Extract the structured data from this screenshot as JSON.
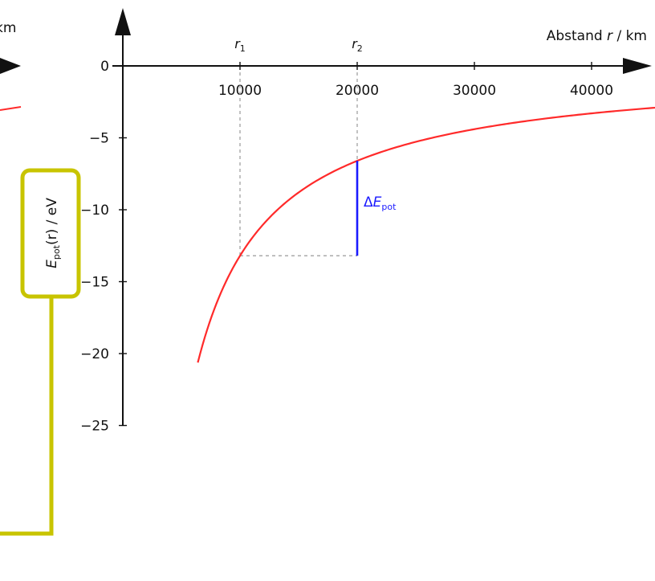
{
  "chart_data": {
    "type": "line",
    "xlabel": "Abstand r / km",
    "ylabel": "E_pot(r) / eV",
    "xlim": [
      0,
      46000
    ],
    "ylim": [
      -25,
      0
    ],
    "x_ticks": [
      10000,
      20000,
      30000,
      40000
    ],
    "y_ticks": [
      0,
      -5,
      -10,
      -15,
      -20,
      -25
    ],
    "x_tick_labels": [
      "10000",
      "20000",
      "30000",
      "40000"
    ],
    "y_tick_labels": [
      "0",
      "−5",
      "−10",
      "−15",
      "−20",
      "−25"
    ],
    "grid": false,
    "function": "E(r) = -132000 / r",
    "x_domain": [
      6400,
      46000
    ],
    "markers": [
      {
        "label": "r1",
        "x": 10000
      },
      {
        "label": "r2",
        "x": 20000
      }
    ],
    "annotation": {
      "label": "ΔE_pot",
      "x": 20000,
      "y_from": -13.2,
      "y_to": -6.6,
      "color": "#1a1aff"
    },
    "curve_color": "#ff2a2a"
  },
  "labels": {
    "xlabel_main": "Abstand ",
    "xlabel_var": "r",
    "xlabel_unit": " / km",
    "ylabel_E": "E",
    "ylabel_sub": "pot",
    "ylabel_rest": "(r) / eV",
    "delta": "Δ",
    "delta_E": "E",
    "delta_sub": "pot",
    "r_letter": "r",
    "r1_sub": "1",
    "r2_sub": "2",
    "left_fragment": "km"
  },
  "colors": {
    "highlight": "#c8c400",
    "axis": "#111111",
    "guide": "#999999"
  }
}
